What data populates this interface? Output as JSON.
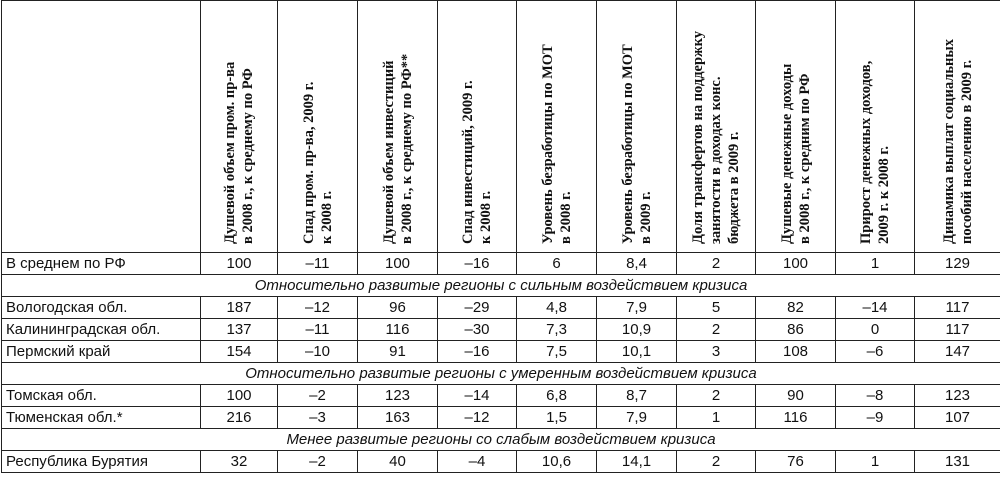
{
  "headers": [
    "",
    "Душевой объем пром. пр-ва\nв 2008 г., к среднему по РФ",
    "Спад пром. пр-ва, 2009 г.\nк 2008 г.",
    "Душевой объем инвестиций\nв 2008 г., к среднему по РФ**",
    "Спад инвестиций, 2009 г.\nк 2008 г.",
    "Уровень безработицы по МОТ\nв 2008 г.",
    "Уровень безработицы по МОТ\nв 2009 г.",
    "Доля трансфертов на поддержку\nзанятости в доходах конс.\nбюджета в 2009 г.",
    "Душевые денежные доходы\nв 2008 г., к средним по РФ",
    "Прирост денежных доходов,\n2009 г. к 2008 г.",
    "Динамика выплат социальных\nпособий населению в 2009 г."
  ],
  "rows": [
    {
      "name": "В среднем по РФ",
      "values": [
        "100",
        "–11",
        "100",
        "–16",
        "6",
        "8,4",
        "2",
        "100",
        "1",
        "129"
      ]
    },
    {
      "group": "Относительно развитые регионы с сильным воздействием кризиса"
    },
    {
      "name": "Вологодская обл.",
      "values": [
        "187",
        "–12",
        "96",
        "–29",
        "4,8",
        "7,9",
        "5",
        "82",
        "–14",
        "117"
      ]
    },
    {
      "name": "Калининградская обл.",
      "values": [
        "137",
        "–11",
        "116",
        "–30",
        "7,3",
        "10,9",
        "2",
        "86",
        "0",
        "117"
      ]
    },
    {
      "name": "Пермский край",
      "values": [
        "154",
        "–10",
        "91",
        "–16",
        "7,5",
        "10,1",
        "3",
        "108",
        "–6",
        "147"
      ]
    },
    {
      "group": "Относительно развитые регионы с умеренным воздействием кризиса"
    },
    {
      "name": "Томская обл.",
      "values": [
        "100",
        "–2",
        "123",
        "–14",
        "6,8",
        "8,7",
        "2",
        "90",
        "–8",
        "123"
      ]
    },
    {
      "name": "Тюменская обл.*",
      "values": [
        "216",
        "–3",
        "163",
        "–12",
        "1,5",
        "7,9",
        "1",
        "116",
        "–9",
        "107"
      ]
    },
    {
      "group": "Менее развитые регионы со слабым воздействием кризиса"
    },
    {
      "name": "Республика Бурятия",
      "values": [
        "32",
        "–2",
        "40",
        "–4",
        "10,6",
        "14,1",
        "2",
        "76",
        "1",
        "131"
      ]
    }
  ]
}
